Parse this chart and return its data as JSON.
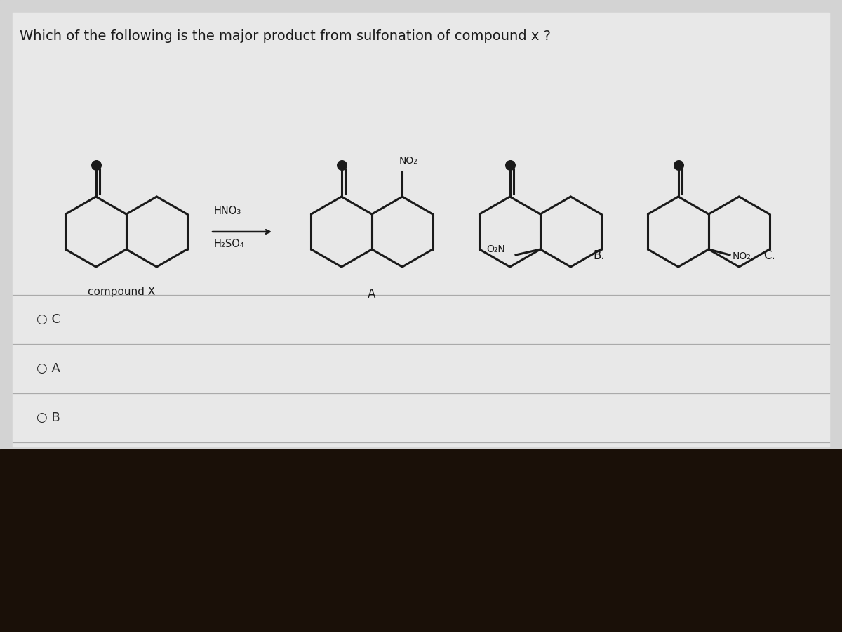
{
  "title": "Which of the following is the major product from sulfonation of compound x ?",
  "title_fontsize": 14,
  "bg_top_color": "#cecece",
  "bg_bottom_color": "#1a1008",
  "panel_color": "#e0e0e0",
  "line_color": "#aaaaaa",
  "text_color": "#1a1a1a",
  "mol_color": "#1a1a1a",
  "reagent_hno3": "HNO₃",
  "reagent_h2so4": "H₂SO₄",
  "compound_label": "compound X",
  "label_A": "A",
  "label_B": "B.",
  "label_C": "C.",
  "choice_C": "○ C",
  "choice_A": "○ A",
  "choice_B": "○ B",
  "no2_label": "NO₂",
  "o2n_label": "O₂N"
}
